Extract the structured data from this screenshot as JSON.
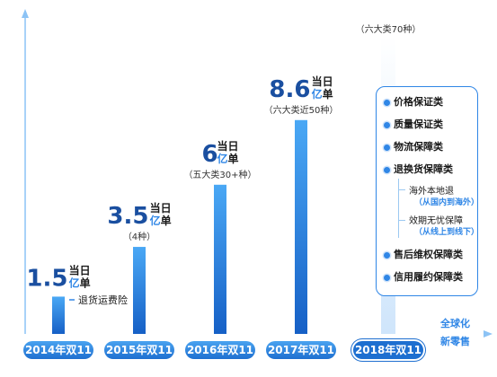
{
  "chart_data": {
    "type": "bar",
    "categories": [
      "2014年双11",
      "2015年双11",
      "2016年双11",
      "2017年双11",
      "2018年双11"
    ],
    "values": [
      1.5,
      3.5,
      6,
      8.6,
      null
    ],
    "value_labels": [
      "1.5",
      "3.5",
      "6",
      "8.6",
      ""
    ],
    "unit_top": "当日",
    "unit_bottom_a": "亿",
    "unit_bottom_b": "单",
    "notes": [
      "",
      "（4种）",
      "（五大类30+种）",
      "（六大类近50种）",
      "（六大类70种）"
    ],
    "first_bar_item": "退货运费险",
    "ylabel": "",
    "xlabel": "",
    "ylim": [
      0,
      10
    ],
    "grid": false
  },
  "panel": {
    "items": [
      "价格保证类",
      "质量保证类",
      "物流保障类",
      "退换货保障类"
    ],
    "sub_items": [
      {
        "label": "海外本地退",
        "note": "（从国内到海外）"
      },
      {
        "label": "效期无忧保障",
        "note": "（从线上到线下）"
      }
    ],
    "items_after": [
      "售后维权保障类",
      "信用履约保障类"
    ]
  },
  "tail": {
    "line1": "全球化",
    "line2": "新零售"
  },
  "colors": {
    "bar_top": "#3f9cf2",
    "bar_bottom": "#1a63c9",
    "accent": "#2f86e6",
    "dark": "#1a4fa0"
  }
}
